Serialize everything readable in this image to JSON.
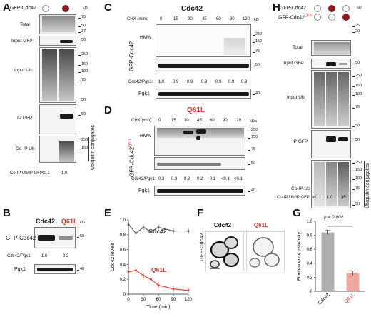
{
  "panels": {
    "A": {
      "letter": "A",
      "sample_label": "GFP-Cdc42",
      "circles": [
        "empty",
        "filled"
      ],
      "blots": [
        "Total",
        "Input GFP",
        "Input Ub",
        "IP GFP",
        "Co-IP Ub"
      ],
      "mw_total": [
        "75",
        "50",
        "37"
      ],
      "mw_input_gfp": [
        "50"
      ],
      "mw_input_ub": [
        "250",
        "150",
        "100",
        "75",
        "50"
      ],
      "mw_ip_gfp": [
        "50"
      ],
      "mw_coip": [
        "250",
        "150"
      ],
      "kd": "kD",
      "side_label": "Ubiquitin conjugates",
      "ratio_label": "Co-IP Ub/IP GFP:",
      "ratios": [
        "<0.1",
        "1.0"
      ]
    },
    "B": {
      "letter": "B",
      "col1": "Cdc42",
      "col2": "Q61L",
      "row_label": "GFP-Cdc42",
      "kd": "kD",
      "mw_gfp": "50",
      "ratio_label": "Cdc42/Pgk1:",
      "ratios": [
        "1.0",
        "0.2"
      ],
      "pgk1": "Pgk1",
      "mw_pgk1": "40"
    },
    "C": {
      "letter": "C",
      "title": "Cdc42",
      "chx_label": "CHX (min):",
      "times": [
        "0",
        "15",
        "30",
        "45",
        "60",
        "90",
        "120"
      ],
      "kd": "kD",
      "hmw": "HMW",
      "mw": [
        "250",
        "150",
        "75",
        "50"
      ],
      "side_label": "GFP-Cdc42",
      "ratio_label": "Cdc42/Pgk1:",
      "ratios": [
        "1.0",
        "0.9",
        "0.9",
        "0.9",
        "0.9",
        "0.9",
        "0.9"
      ],
      "pgk1": "Pgk1",
      "mw_pgk1": "40"
    },
    "D": {
      "letter": "D",
      "title": "Q61L",
      "chx_label": "CHX (min):",
      "times": [
        "0",
        "15",
        "30",
        "45",
        "60",
        "90",
        "120"
      ],
      "kda": "kDa",
      "hmw": "HMW",
      "mw": [
        "250",
        "150",
        "75",
        "50"
      ],
      "side_label": "GFP-Cdc42",
      "side_sup": "Q61L",
      "ratio_label": "Cdc42/Pgk1:",
      "ratios": [
        "0.3",
        "0.3",
        "0.2",
        "0.2",
        "0.1",
        "<0.1",
        "<0.1"
      ],
      "pgk1": "Pgk1",
      "mw_pgk1": "40"
    },
    "E": {
      "letter": "E",
      "label_cdc42": "Cdc42",
      "label_q61l": "Q61L"
    },
    "F": {
      "letter": "F",
      "side_label": "GFP-Cdc42",
      "col1": "Cdc42",
      "col2": "Q61L"
    },
    "G": {
      "letter": "G",
      "pvalue": "p = 0.002"
    },
    "H": {
      "letter": "H",
      "row1": "GFP-Cdc42",
      "row2": "GFP-Cdc42",
      "row2_sup": "Q61L",
      "row1_circles": [
        "empty",
        "filled",
        "empty"
      ],
      "row2_circles": [
        "empty",
        "empty",
        "filled"
      ],
      "kd": "kD",
      "blots": [
        "Total",
        "Input GFP",
        "Input Ub",
        "IP GFP",
        "Co-IP Ub"
      ],
      "mw_total": [
        "25",
        "20"
      ],
      "mw_input_gfp": [
        "50"
      ],
      "mw_ub": [
        "250",
        "150",
        "100",
        "75",
        "50"
      ],
      "mw_ip": [
        "50"
      ],
      "mw_coip": [
        "250",
        "150",
        "100",
        "75",
        "50"
      ],
      "side_label": "Ubiquitin conjugates",
      "ratio_label": "Co-IP Ub/IP GFP:",
      "ratios": [
        "<0.1",
        "1.0",
        "35"
      ]
    }
  },
  "chart_data": [
    {
      "type": "line",
      "xlabel": "Time (min)",
      "ylabel": "Cdc42 levels",
      "xlim": [
        0,
        120
      ],
      "ylim": [
        0,
        1.0
      ],
      "xticks": [
        "0",
        "30",
        "60",
        "90",
        "120"
      ],
      "yticks": [
        "0",
        "0.2",
        "0.4",
        "0.6",
        "0.8",
        "1.0"
      ],
      "series": [
        {
          "name": "Cdc42",
          "color": "#555555",
          "x": [
            0,
            15,
            30,
            45,
            60,
            90,
            120
          ],
          "y": [
            0.94,
            0.82,
            0.9,
            0.84,
            0.9,
            0.85,
            0.85
          ]
        },
        {
          "name": "Q61L",
          "color": "#d9352c",
          "x": [
            0,
            15,
            30,
            45,
            60,
            90,
            120
          ],
          "y": [
            0.3,
            0.32,
            0.25,
            0.2,
            0.12,
            0.07,
            0.05
          ]
        }
      ]
    },
    {
      "type": "bar",
      "ylabel": "Fluorescence instensity",
      "categories": [
        "Cdc42",
        "Q61L"
      ],
      "values": [
        0.84,
        0.26
      ],
      "errors": [
        0.03,
        0.03
      ],
      "colors": [
        "#b0b0b0",
        "#f0a8a0"
      ],
      "ylim": [
        0,
        1.0
      ],
      "yticks": [
        "0",
        "0.2",
        "0.4",
        "0.6",
        "0.8",
        "1.0"
      ]
    }
  ]
}
